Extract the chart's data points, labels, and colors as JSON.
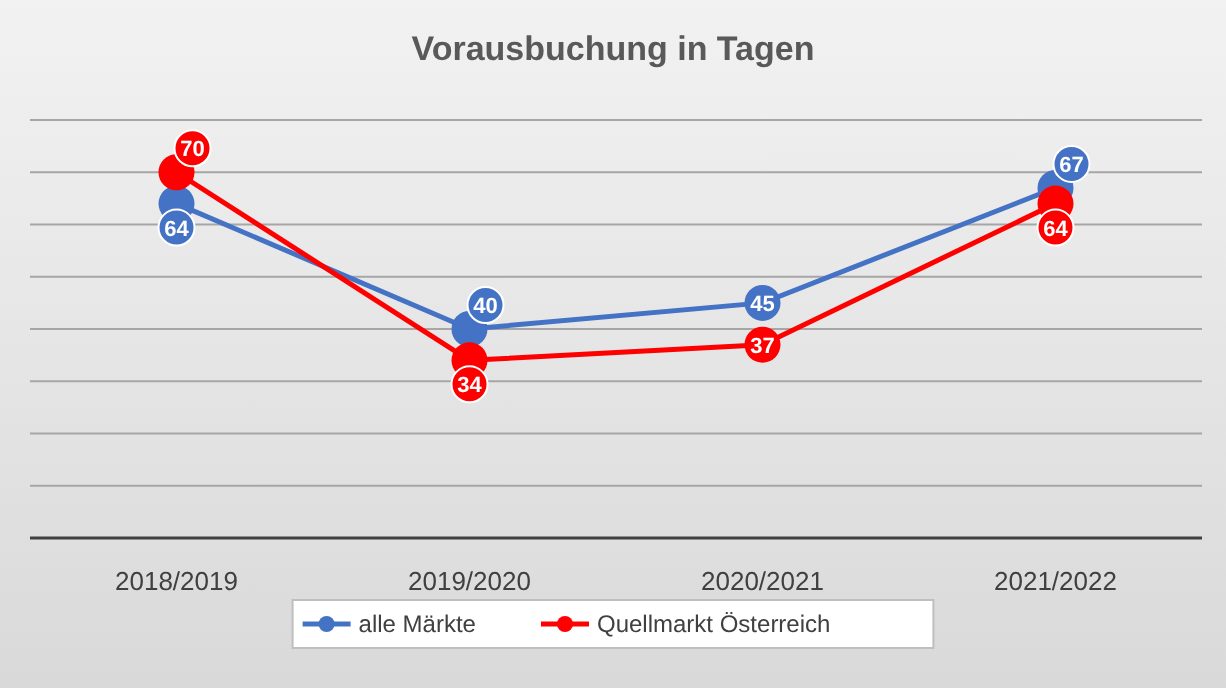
{
  "chart_data": {
    "type": "line",
    "title": "Vorausbuchung in Tagen",
    "categories": [
      "2018/2019",
      "2019/2020",
      "2020/2021",
      "2021/2022"
    ],
    "series": [
      {
        "name": "alle Märkte",
        "color": "#4472c4",
        "values": [
          64,
          40,
          45,
          67
        ]
      },
      {
        "name": "Quellmarkt Österreich",
        "color": "#ff0000",
        "values": [
          70,
          34,
          37,
          64
        ]
      }
    ],
    "ylim": [
      0,
      80
    ],
    "yticks": [
      {
        "value": 0,
        "label": null
      },
      {
        "value": 10,
        "label": null
      },
      {
        "value": 20,
        "label": null
      },
      {
        "value": 30,
        "label": null
      },
      {
        "value": 40,
        "label": null
      },
      {
        "value": 50,
        "label": null
      },
      {
        "value": 60,
        "label": null
      },
      {
        "value": 70,
        "label": null
      },
      {
        "value": 80,
        "label": null
      }
    ],
    "tick_labels": "x",
    "grid": "y",
    "legend": "bottom",
    "marker": "circle",
    "line_style": "solid",
    "data_labels": true
  }
}
